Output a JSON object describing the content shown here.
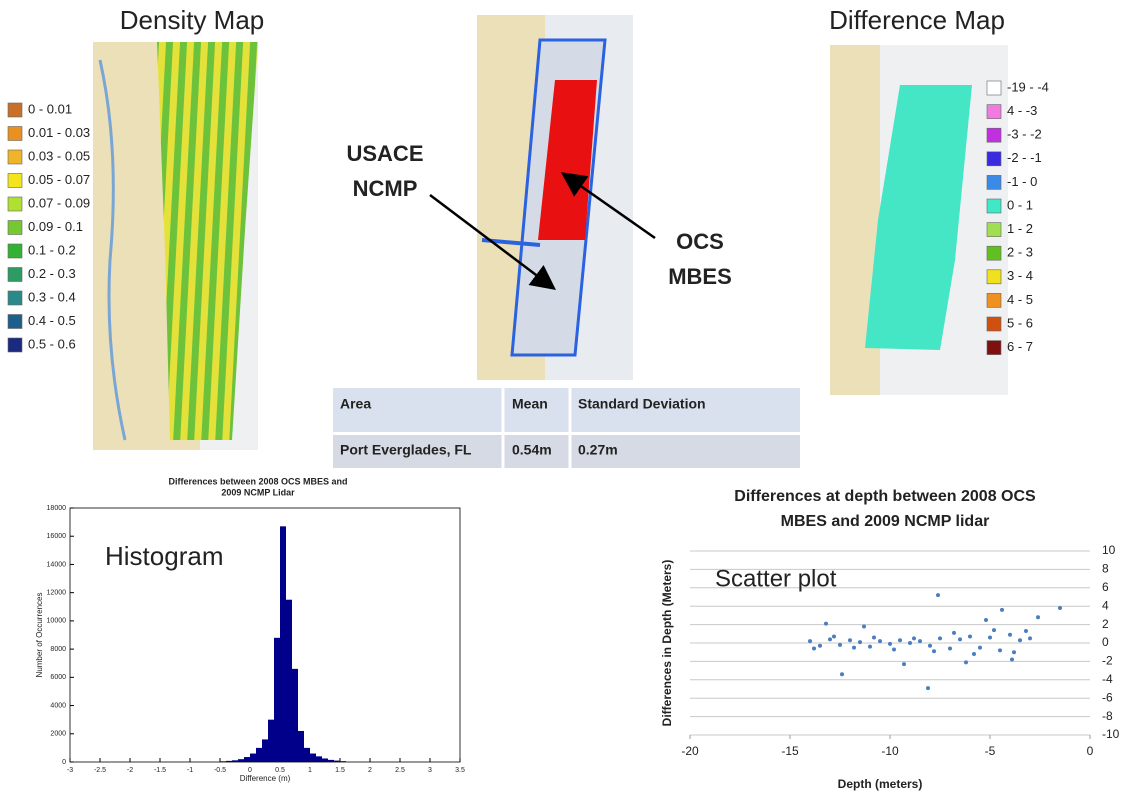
{
  "density_map": {
    "title": "Density Map",
    "legend": [
      {
        "label": "0 - 0.01",
        "color": "#c8702a"
      },
      {
        "label": "0.01 - 0.03",
        "color": "#e89020"
      },
      {
        "label": "0.03 - 0.05",
        "color": "#f0b428"
      },
      {
        "label": "0.05 - 0.07",
        "color": "#f4e41c"
      },
      {
        "label": "0.07 - 0.09",
        "color": "#b0e030"
      },
      {
        "label": "0.09 - 0.1",
        "color": "#74c830"
      },
      {
        "label": "0.1 - 0.2",
        "color": "#34b034"
      },
      {
        "label": "0.2 - 0.3",
        "color": "#2e9a64"
      },
      {
        "label": "0.3 - 0.4",
        "color": "#2a8a8a"
      },
      {
        "label": "0.4 - 0.5",
        "color": "#1e5e8a"
      },
      {
        "label": "0.5 - 0.6",
        "color": "#1a2a80"
      }
    ]
  },
  "overlay_map": {
    "annotations": [
      {
        "lines": [
          "USACE",
          "NCMP"
        ]
      },
      {
        "lines": [
          "OCS",
          "MBES"
        ]
      }
    ]
  },
  "difference_map": {
    "title": "Difference Map",
    "legend": [
      {
        "label": "-19 - -4",
        "color": "#ffffff"
      },
      {
        "label": "4 - -3",
        "color": "#f07ae0"
      },
      {
        "label": "-3 - -2",
        "color": "#c030e0"
      },
      {
        "label": "-2 - -1",
        "color": "#3a2ae0"
      },
      {
        "label": "-1 - 0",
        "color": "#3a8ae8"
      },
      {
        "label": "0 - 1",
        "color": "#40e8c8"
      },
      {
        "label": "1 - 2",
        "color": "#a0e050"
      },
      {
        "label": "2 - 3",
        "color": "#60c020"
      },
      {
        "label": "3 - 4",
        "color": "#f0e020"
      },
      {
        "label": "4 - 5",
        "color": "#f09020"
      },
      {
        "label": "5 - 6",
        "color": "#d05010"
      },
      {
        "label": "6 - 7",
        "color": "#801010"
      }
    ]
  },
  "table": {
    "header": [
      "Area",
      "Mean",
      "Standard Deviation"
    ],
    "rows": [
      [
        "Port Everglades, FL",
        "0.54m",
        "0.27m"
      ]
    ]
  },
  "chart_data": [
    {
      "type": "histogram",
      "title": [
        "Differences between 2008 OCS MBES and",
        "2009 NCMP Lidar"
      ],
      "annotation": "Histogram",
      "xlabel": "Difference (m)",
      "ylabel": "Number of Occurrences",
      "bins": [
        -0.5,
        -0.4,
        -0.3,
        -0.2,
        -0.1,
        0,
        0.1,
        0.2,
        0.3,
        0.4,
        0.5,
        0.6,
        0.7,
        0.8,
        0.9,
        1.0,
        1.1,
        1.2,
        1.3,
        1.4,
        1.5,
        1.6
      ],
      "values": [
        50,
        80,
        120,
        200,
        350,
        600,
        1000,
        1600,
        3000,
        8800,
        16700,
        11500,
        6600,
        2200,
        1000,
        600,
        400,
        250,
        150,
        100,
        60
      ],
      "color": "#00008b",
      "xlim": [
        -3,
        3.5
      ],
      "xticks": [
        -3,
        -2.5,
        -2,
        -1.5,
        -1,
        -0.5,
        0,
        0.5,
        1,
        1.5,
        2,
        2.5,
        3,
        3.5
      ],
      "ylim": [
        0,
        18000
      ],
      "yticks": [
        0,
        2000,
        4000,
        6000,
        8000,
        10000,
        12000,
        14000,
        16000,
        18000
      ]
    },
    {
      "type": "scatter",
      "title": [
        "Differences at depth between 2008 OCS",
        "MBES and 2009 NCMP lidar"
      ],
      "annotation": "Scatter plot",
      "xlabel": "Depth (meters)",
      "ylabel": "Differences in Depth (Meters)",
      "x": [
        -14,
        -13.5,
        -13,
        -12.5,
        -12,
        -11.5,
        -11,
        -10.5,
        -10,
        -9.5,
        -9,
        -8.5,
        -8,
        -7.5,
        -7,
        -6.5,
        -6,
        -5.5,
        -5,
        -4.5,
        -4,
        -3.5,
        -3,
        -13.8,
        -12.8,
        -11.8,
        -10.8,
        -9.8,
        -8.8,
        -7.8,
        -6.8,
        -5.8,
        -4.8,
        -3.8,
        -3.2,
        -13.2,
        -7.6,
        -9.3,
        -4.4,
        -11.3,
        -6.2,
        -2.6,
        -12.4,
        -8.1,
        -5.2,
        -3.9,
        -1.5
      ],
      "y": [
        0.2,
        -0.3,
        0.4,
        -0.2,
        0.3,
        0.1,
        -0.4,
        0.2,
        -0.1,
        0.3,
        0,
        0.2,
        -0.3,
        0.5,
        -0.6,
        0.4,
        0.7,
        -0.5,
        0.6,
        -0.8,
        0.9,
        0.3,
        0.5,
        -0.6,
        0.7,
        -0.5,
        0.6,
        -0.7,
        0.5,
        -0.9,
        1.1,
        -1.2,
        1.4,
        -1.0,
        1.3,
        2.1,
        5.2,
        -2.3,
        3.6,
        1.8,
        -2.1,
        2.8,
        -3.4,
        -4.9,
        2.5,
        -1.8,
        3.8
      ],
      "color": "#4a7ebf",
      "xlim": [
        -20,
        0
      ],
      "xticks": [
        -20,
        -15,
        -10,
        -5,
        0
      ],
      "ylim": [
        -10,
        10
      ],
      "yticks": [
        -10,
        -8,
        -6,
        -4,
        -2,
        0,
        2,
        4,
        6,
        8,
        10
      ],
      "grid": true
    }
  ]
}
